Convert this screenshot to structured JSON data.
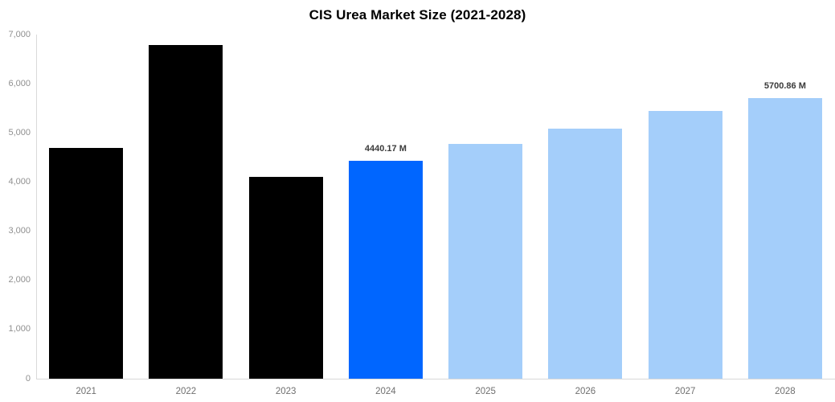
{
  "chart_data": {
    "type": "bar",
    "title": "CIS Urea Market Size (2021-2028)",
    "categories": [
      "2021",
      "2022",
      "2023",
      "2024",
      "2025",
      "2026",
      "2027",
      "2028"
    ],
    "values": [
      4700,
      6790,
      4100,
      4440.17,
      4770,
      5090,
      5450,
      5700.86
    ],
    "data_labels": [
      "",
      "",
      "",
      "4440.17 M",
      "",
      "",
      "",
      "5700.86 M"
    ],
    "bar_colors": [
      "#000000",
      "#000000",
      "#000000",
      "#0066ff",
      "#a4cefa",
      "#a4cefa",
      "#a4cefa",
      "#a4cefa"
    ],
    "ylim": [
      0,
      7000
    ],
    "ytick_values": [
      0,
      1000,
      2000,
      3000,
      4000,
      5000,
      6000,
      7000
    ],
    "ytick_labels": [
      "0",
      "1,000",
      "2,000",
      "3,000",
      "4,000",
      "5,000",
      "6,000",
      "7,000"
    ],
    "xlabel": "",
    "ylabel": "",
    "grid": false,
    "legend": "none",
    "colors": {
      "highlight_bar": "#0066ff",
      "forecast_bar": "#a4cefa",
      "historical_bar": "#000000",
      "axis_line": "#d9d9d9",
      "y_tick_text": "#8f8f8f",
      "x_tick_text": "#6f6f6f",
      "bar_label_text": "#3a3a3a",
      "title_text": "#000000",
      "background": "#ffffff"
    }
  }
}
